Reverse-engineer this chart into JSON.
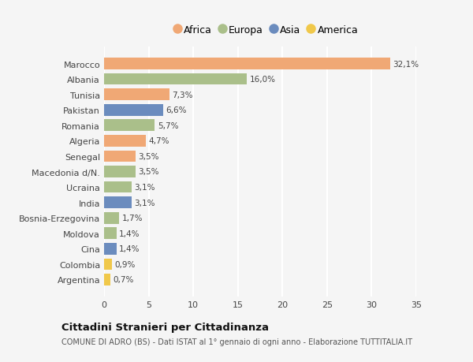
{
  "countries": [
    "Marocco",
    "Albania",
    "Tunisia",
    "Pakistan",
    "Romania",
    "Algeria",
    "Senegal",
    "Macedonia d/N.",
    "Ucraina",
    "India",
    "Bosnia-Erzegovina",
    "Moldova",
    "Cina",
    "Colombia",
    "Argentina"
  ],
  "values": [
    32.1,
    16.0,
    7.3,
    6.6,
    5.7,
    4.7,
    3.5,
    3.5,
    3.1,
    3.1,
    1.7,
    1.4,
    1.4,
    0.9,
    0.7
  ],
  "labels": [
    "32,1%",
    "16,0%",
    "7,3%",
    "6,6%",
    "5,7%",
    "4,7%",
    "3,5%",
    "3,5%",
    "3,1%",
    "3,1%",
    "1,7%",
    "1,4%",
    "1,4%",
    "0,9%",
    "0,7%"
  ],
  "continents": [
    "Africa",
    "Europa",
    "Africa",
    "Asia",
    "Europa",
    "Africa",
    "Africa",
    "Europa",
    "Europa",
    "Asia",
    "Europa",
    "Europa",
    "Asia",
    "America",
    "America"
  ],
  "colors": {
    "Africa": "#F0A875",
    "Europa": "#AABF8A",
    "Asia": "#6B8CBE",
    "America": "#F0C84A"
  },
  "legend_order": [
    "Africa",
    "Europa",
    "Asia",
    "America"
  ],
  "title": "Cittadini Stranieri per Cittadinanza",
  "subtitle": "COMUNE DI ADRO (BS) - Dati ISTAT al 1° gennaio di ogni anno - Elaborazione TUTTITALIA.IT",
  "xlim": [
    0,
    35
  ],
  "xticks": [
    0,
    5,
    10,
    15,
    20,
    25,
    30,
    35
  ],
  "background_color": "#f5f5f5",
  "grid_color": "#ffffff"
}
